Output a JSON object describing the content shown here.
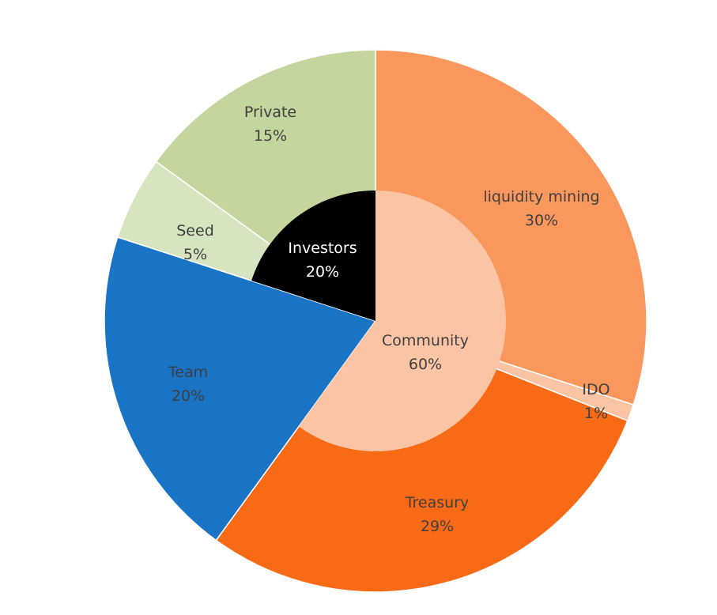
{
  "chart_data": {
    "type": "pie",
    "title": "",
    "rings": [
      {
        "name": "inner",
        "slices": [
          {
            "label": "Investors",
            "pct_label": "20%",
            "value": 20,
            "color": "#000000",
            "text_color": "#ffffff"
          },
          {
            "label": "Team",
            "pct_label": "20%",
            "value": 20,
            "color": "#1a74c6",
            "text_color": "#404040"
          },
          {
            "label": "Community",
            "pct_label": "60%",
            "value": 60,
            "color": "#fbc4a4",
            "text_color": "#404040"
          }
        ]
      },
      {
        "name": "outer",
        "slices": [
          {
            "label": "liquidity mining",
            "pct_label": "30%",
            "value": 30,
            "color": "#f9975d",
            "text_color": "#404040"
          },
          {
            "label": "IDO",
            "pct_label": "1%",
            "value": 1,
            "color": "#fbc4a4",
            "text_color": "#404040"
          },
          {
            "label": "Treasury",
            "pct_label": "29%",
            "value": 29,
            "color": "#f86a15",
            "text_color": "#404040"
          },
          {
            "label": "Team",
            "pct_label": "20%",
            "value": 20,
            "color": "#1a74c6",
            "text_color": "#404040"
          },
          {
            "label": "Seed",
            "pct_label": "5%",
            "value": 5,
            "color": "#d6e4c0",
            "text_color": "#404040"
          },
          {
            "label": "Private",
            "pct_label": "15%",
            "value": 15,
            "color": "#c4d59d",
            "text_color": "#404040"
          }
        ]
      }
    ]
  }
}
